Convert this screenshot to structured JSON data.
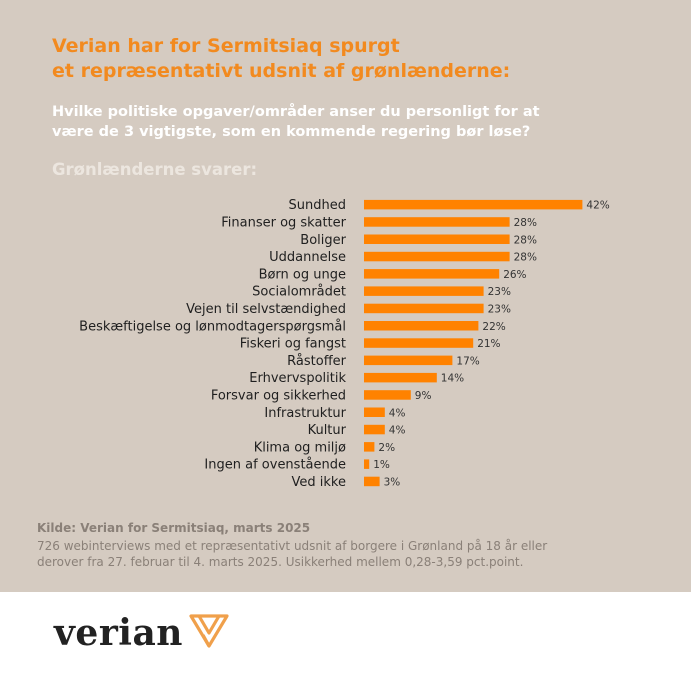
{
  "header": {
    "title_line1": "Verian har for Sermitsiaq spurgt",
    "title_line2": "et repræsentativt udsnit af grønlænderne:",
    "question_line1": "Hvilke politiske opgaver/områder anser du personligt for at",
    "question_line2": "være de 3 vigtigste, som en kommende regering bør løse?",
    "subtitle": "Grønlænderne svarer:"
  },
  "chart_data": {
    "type": "bar",
    "orientation": "horizontal",
    "categories": [
      "Sundhed",
      "Finanser og skatter",
      "Boliger",
      "Uddannelse",
      "Børn og unge",
      "Socialområdet",
      "Vejen til selvstændighed",
      "Beskæftigelse og lønmodtagerspørgsmål",
      "Fiskeri og fangst",
      "Råstoffer",
      "Erhvervspolitik",
      "Forsvar og sikkerhed",
      "Infrastruktur",
      "Kultur",
      "Klima og miljø",
      "Ingen af ovenstående",
      "Ved ikke"
    ],
    "values": [
      42,
      28,
      28,
      28,
      26,
      23,
      23,
      22,
      21,
      17,
      14,
      9,
      4,
      4,
      2,
      1,
      3
    ],
    "value_labels": [
      "42%",
      "28%",
      "28%",
      "28%",
      "26%",
      "23%",
      "23%",
      "22%",
      "21%",
      "17%",
      "14%",
      "9%",
      "4%",
      "4%",
      "2%",
      "1%",
      "3%"
    ],
    "unit": "%",
    "grid": false,
    "legend": "none",
    "bar_color": "#ff8200"
  },
  "source": {
    "title": "Kilde: Verian for Sermitsiaq, marts 2025",
    "line1": "726 webinterviews med et repræsentativt udsnit af borgere i Grønland på 18 år eller",
    "line2": "derover fra 27. februar til 4. marts 2025. Usikkerhed mellem 0,28-3,59 pct.point."
  },
  "logo": {
    "text": "verian",
    "icon": "verian-logo-icon"
  }
}
